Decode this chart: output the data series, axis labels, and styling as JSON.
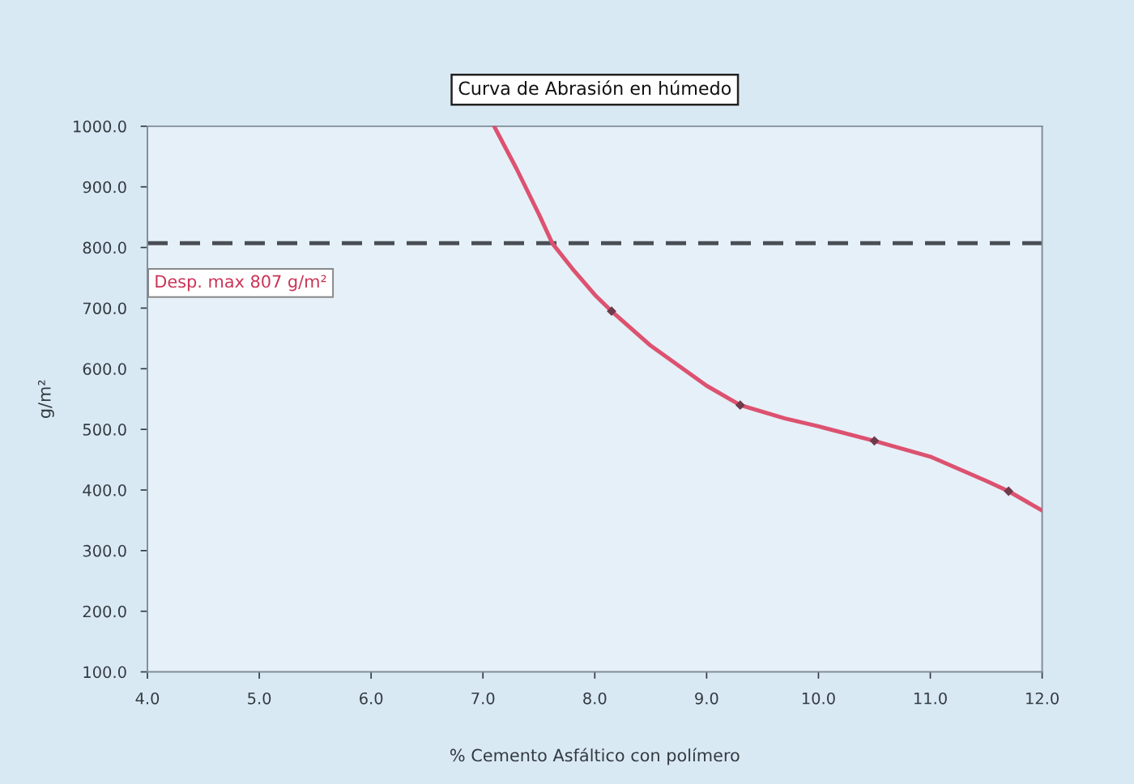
{
  "chart_data": {
    "type": "line",
    "title": "Curva de Abrasión en húmedo",
    "xlabel": "% Cemento Asfáltico con polímero",
    "ylabel": "g/m²",
    "series": [
      {
        "color": "#dc5270",
        "marker": "none",
        "line_style": "solid",
        "x": [
          7.1,
          7.3,
          7.5,
          7.62,
          7.8,
          8.0,
          8.15,
          8.5,
          9.0,
          9.3,
          9.7,
          10.0,
          10.5,
          11.0,
          11.5,
          11.7,
          12.0
        ],
        "values": [
          1000,
          930,
          855,
          807,
          765,
          722,
          695,
          638,
          572,
          540,
          518,
          505,
          481,
          455,
          415,
          398,
          366
        ]
      },
      {
        "type": "scatter",
        "color": "#6e3a4c",
        "marker": "diamond",
        "x": [
          8.15,
          9.3,
          10.5,
          11.7
        ],
        "values": [
          695,
          540,
          481,
          398
        ]
      }
    ],
    "xlim": [
      4,
      12
    ],
    "xticks": [
      {
        "value": 4,
        "label": "4.0"
      },
      {
        "value": 5,
        "label": "5.0"
      },
      {
        "value": 6,
        "label": "6.0"
      },
      {
        "value": 7,
        "label": "7.0"
      },
      {
        "value": 8,
        "label": "8.0"
      },
      {
        "value": 9,
        "label": "9.0"
      },
      {
        "value": 10,
        "label": "10.0"
      },
      {
        "value": 11,
        "label": "11.0"
      },
      {
        "value": 12,
        "label": "12.0"
      }
    ],
    "ylim": [
      100,
      1000
    ],
    "yticks": [
      {
        "value": 100,
        "label": "100.0"
      },
      {
        "value": 200,
        "label": "200.0"
      },
      {
        "value": 300,
        "label": "300.0"
      },
      {
        "value": 400,
        "label": "400.0"
      },
      {
        "value": 500,
        "label": "500.0"
      },
      {
        "value": 600,
        "label": "600.0"
      },
      {
        "value": 700,
        "label": "700.0"
      },
      {
        "value": 800,
        "label": "800.0"
      },
      {
        "value": 900,
        "label": "900.0"
      },
      {
        "value": 1000,
        "label": "1000.0"
      }
    ],
    "ref_lines": [
      {
        "axis": "y",
        "value": 807,
        "label": "Desp. max 807 g/m²",
        "color": "#4a4f55",
        "line_style": "dashed"
      }
    ],
    "grid": false
  }
}
